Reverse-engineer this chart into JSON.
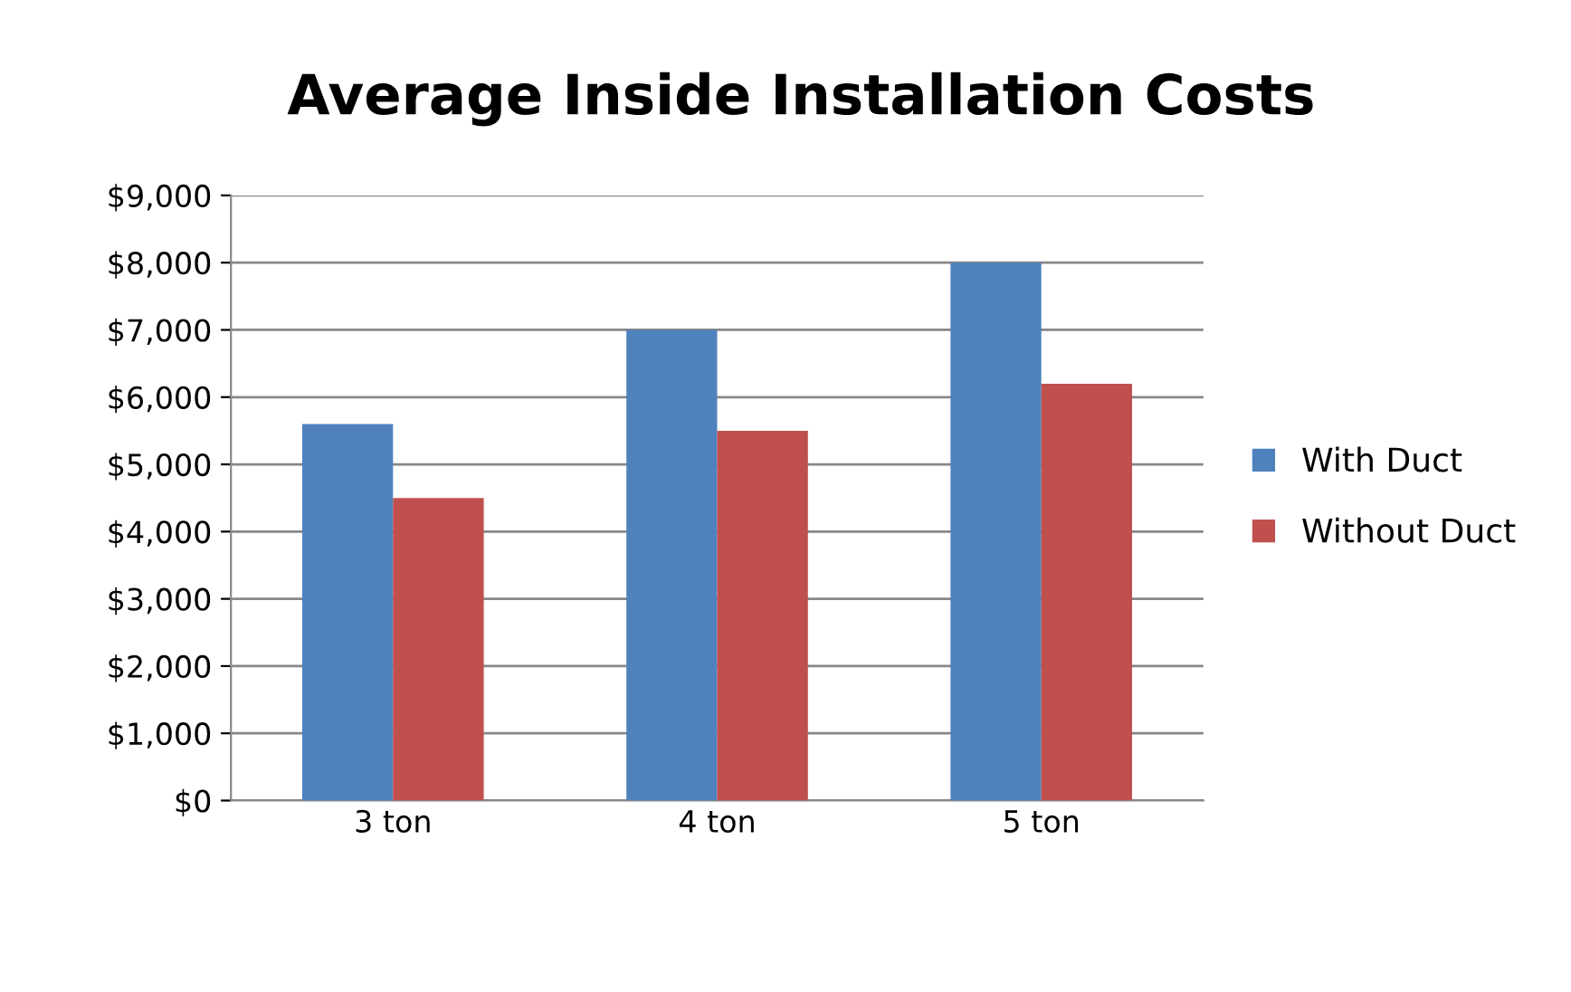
{
  "chart_data": {
    "type": "bar",
    "title": "Average Inside Installation Costs",
    "categories": [
      "3 ton",
      "4 ton",
      "5 ton"
    ],
    "series": [
      {
        "name": "With Duct",
        "color": "#4f81bd",
        "values": [
          5600,
          7000,
          8000
        ]
      },
      {
        "name": "Without Duct",
        "color": "#c0504d",
        "values": [
          4500,
          5500,
          6200
        ]
      }
    ],
    "ylim": [
      0,
      9000
    ],
    "yticks": [
      {
        "value": 0,
        "label": "$0"
      },
      {
        "value": 1000,
        "label": "$1,000"
      },
      {
        "value": 2000,
        "label": "$2,000"
      },
      {
        "value": 3000,
        "label": "$3,000"
      },
      {
        "value": 4000,
        "label": "$4,000"
      },
      {
        "value": 5000,
        "label": "$5,000"
      },
      {
        "value": 6000,
        "label": "$6,000"
      },
      {
        "value": 7000,
        "label": "$7,000"
      },
      {
        "value": 8000,
        "label": "$8,000"
      },
      {
        "value": 9000,
        "label": "$9,000"
      }
    ],
    "grid": "y",
    "legend": "right"
  }
}
